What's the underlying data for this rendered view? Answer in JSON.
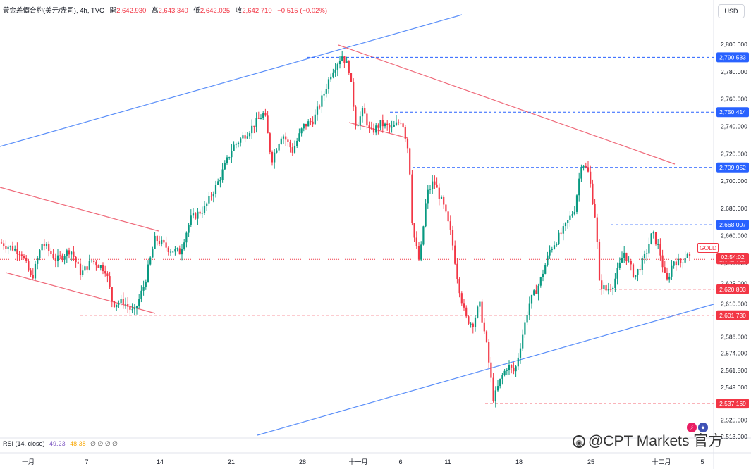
{
  "header": {
    "symbol": "黃金差價合約(美元/盎司), 4h, TVC",
    "open_label": "開",
    "open": "2,642.930",
    "high_label": "高",
    "high": "2,643.340",
    "low_label": "低",
    "low": "2,642.025",
    "close_label": "收",
    "close": "2,642.710",
    "change": "−0.515 (−0.02%)"
  },
  "currency_button": "USD",
  "rsi": {
    "label": "RSI (14, close)",
    "value1": "49.23",
    "value2": "48.38",
    "zeros": "∅ ∅ ∅ ∅"
  },
  "watermark": "@CPT Markets 官方",
  "watermark_icon": "weibo-icon",
  "symbol_tag": "GOLD",
  "countdown": "02:54:02",
  "colors": {
    "bull": "#089981",
    "bear": "#f23645",
    "support": "#f23645",
    "resistance": "#2962ff",
    "trend_blue": "#5b8ff9",
    "trend_red": "#ef6a7a"
  },
  "chart_data": {
    "type": "candlestick",
    "instrument": "GOLD",
    "timeframe": "4h",
    "ylim": [
      2513,
      2817
    ],
    "y_ticks": [
      2800,
      2780,
      2760,
      2740,
      2720,
      2700,
      2680,
      2660,
      2640,
      2625,
      2610,
      2586,
      2574,
      2561.5,
      2549,
      2537,
      2525,
      2513
    ],
    "y_tick_labels": [
      "2,800.000",
      "2,780.000",
      "2,760.000",
      "2,740.000",
      "2,720.000",
      "2,700.000",
      "2,680.000",
      "2,660.000",
      "2,640.000",
      "2,625.000",
      "2,610.000",
      "2,586.000",
      "2,574.000",
      "2,561.500",
      "2,549.000",
      "2,537.000",
      "2,525.000",
      "2,513.000"
    ],
    "x_labels": [
      "十月",
      "7",
      "14",
      "21",
      "28",
      "十一月",
      "6",
      "11",
      "18",
      "25",
      "十二月",
      "5"
    ],
    "price_levels": [
      {
        "price": "2,790.533",
        "value": 2790.533,
        "color": "#2962ff",
        "style": "dashed"
      },
      {
        "price": "2,750.414",
        "value": 2750.414,
        "color": "#2962ff",
        "style": "dashed"
      },
      {
        "price": "2,709.952",
        "value": 2709.952,
        "color": "#2962ff",
        "style": "dashed"
      },
      {
        "price": "2,668.007",
        "value": 2668.007,
        "color": "#2962ff",
        "style": "dashed"
      },
      {
        "price": "2,642.710",
        "value": 2642.71,
        "color": "#f23645",
        "style": "dotted"
      },
      {
        "price": "2,620.803",
        "value": 2620.803,
        "color": "#f23645",
        "style": "dashed"
      },
      {
        "price": "2,601.730",
        "value": 2601.73,
        "color": "#f23645",
        "style": "dashed"
      },
      {
        "price": "2,537.169",
        "value": 2537.169,
        "color": "#f23645",
        "style": "dashed"
      }
    ],
    "price_path": [
      [
        0,
        2655
      ],
      [
        30,
        2648
      ],
      [
        45,
        2628
      ],
      [
        60,
        2655
      ],
      [
        80,
        2642
      ],
      [
        100,
        2650
      ],
      [
        115,
        2632
      ],
      [
        130,
        2642
      ],
      [
        150,
        2635
      ],
      [
        160,
        2610
      ],
      [
        175,
        2612
      ],
      [
        190,
        2603
      ],
      [
        205,
        2625
      ],
      [
        220,
        2658
      ],
      [
        240,
        2650
      ],
      [
        255,
        2648
      ],
      [
        270,
        2672
      ],
      [
        290,
        2680
      ],
      [
        310,
        2700
      ],
      [
        330,
        2725
      ],
      [
        355,
        2738
      ],
      [
        375,
        2750
      ],
      [
        385,
        2715
      ],
      [
        400,
        2735
      ],
      [
        415,
        2722
      ],
      [
        430,
        2740
      ],
      [
        445,
        2745
      ],
      [
        460,
        2765
      ],
      [
        470,
        2780
      ],
      [
        485,
        2792
      ],
      [
        495,
        2782
      ],
      [
        505,
        2740
      ],
      [
        515,
        2752
      ],
      [
        525,
        2735
      ],
      [
        540,
        2742
      ],
      [
        555,
        2738
      ],
      [
        570,
        2745
      ],
      [
        580,
        2720
      ],
      [
        585,
        2665
      ],
      [
        595,
        2640
      ],
      [
        605,
        2690
      ],
      [
        615,
        2700
      ],
      [
        630,
        2680
      ],
      [
        640,
        2660
      ],
      [
        650,
        2625
      ],
      [
        660,
        2600
      ],
      [
        670,
        2595
      ],
      [
        680,
        2610
      ],
      [
        690,
        2580
      ],
      [
        700,
        2540
      ],
      [
        710,
        2555
      ],
      [
        720,
        2565
      ],
      [
        730,
        2560
      ],
      [
        740,
        2585
      ],
      [
        750,
        2610
      ],
      [
        765,
        2625
      ],
      [
        780,
        2650
      ],
      [
        800,
        2665
      ],
      [
        815,
        2680
      ],
      [
        825,
        2715
      ],
      [
        835,
        2705
      ],
      [
        845,
        2670
      ],
      [
        850,
        2625
      ],
      [
        860,
        2620
      ],
      [
        870,
        2625
      ],
      [
        885,
        2648
      ],
      [
        900,
        2630
      ],
      [
        915,
        2645
      ],
      [
        925,
        2662
      ],
      [
        935,
        2650
      ],
      [
        945,
        2625
      ],
      [
        955,
        2642
      ],
      [
        965,
        2640
      ],
      [
        975,
        2648
      ],
      [
        980,
        2642
      ]
    ]
  }
}
